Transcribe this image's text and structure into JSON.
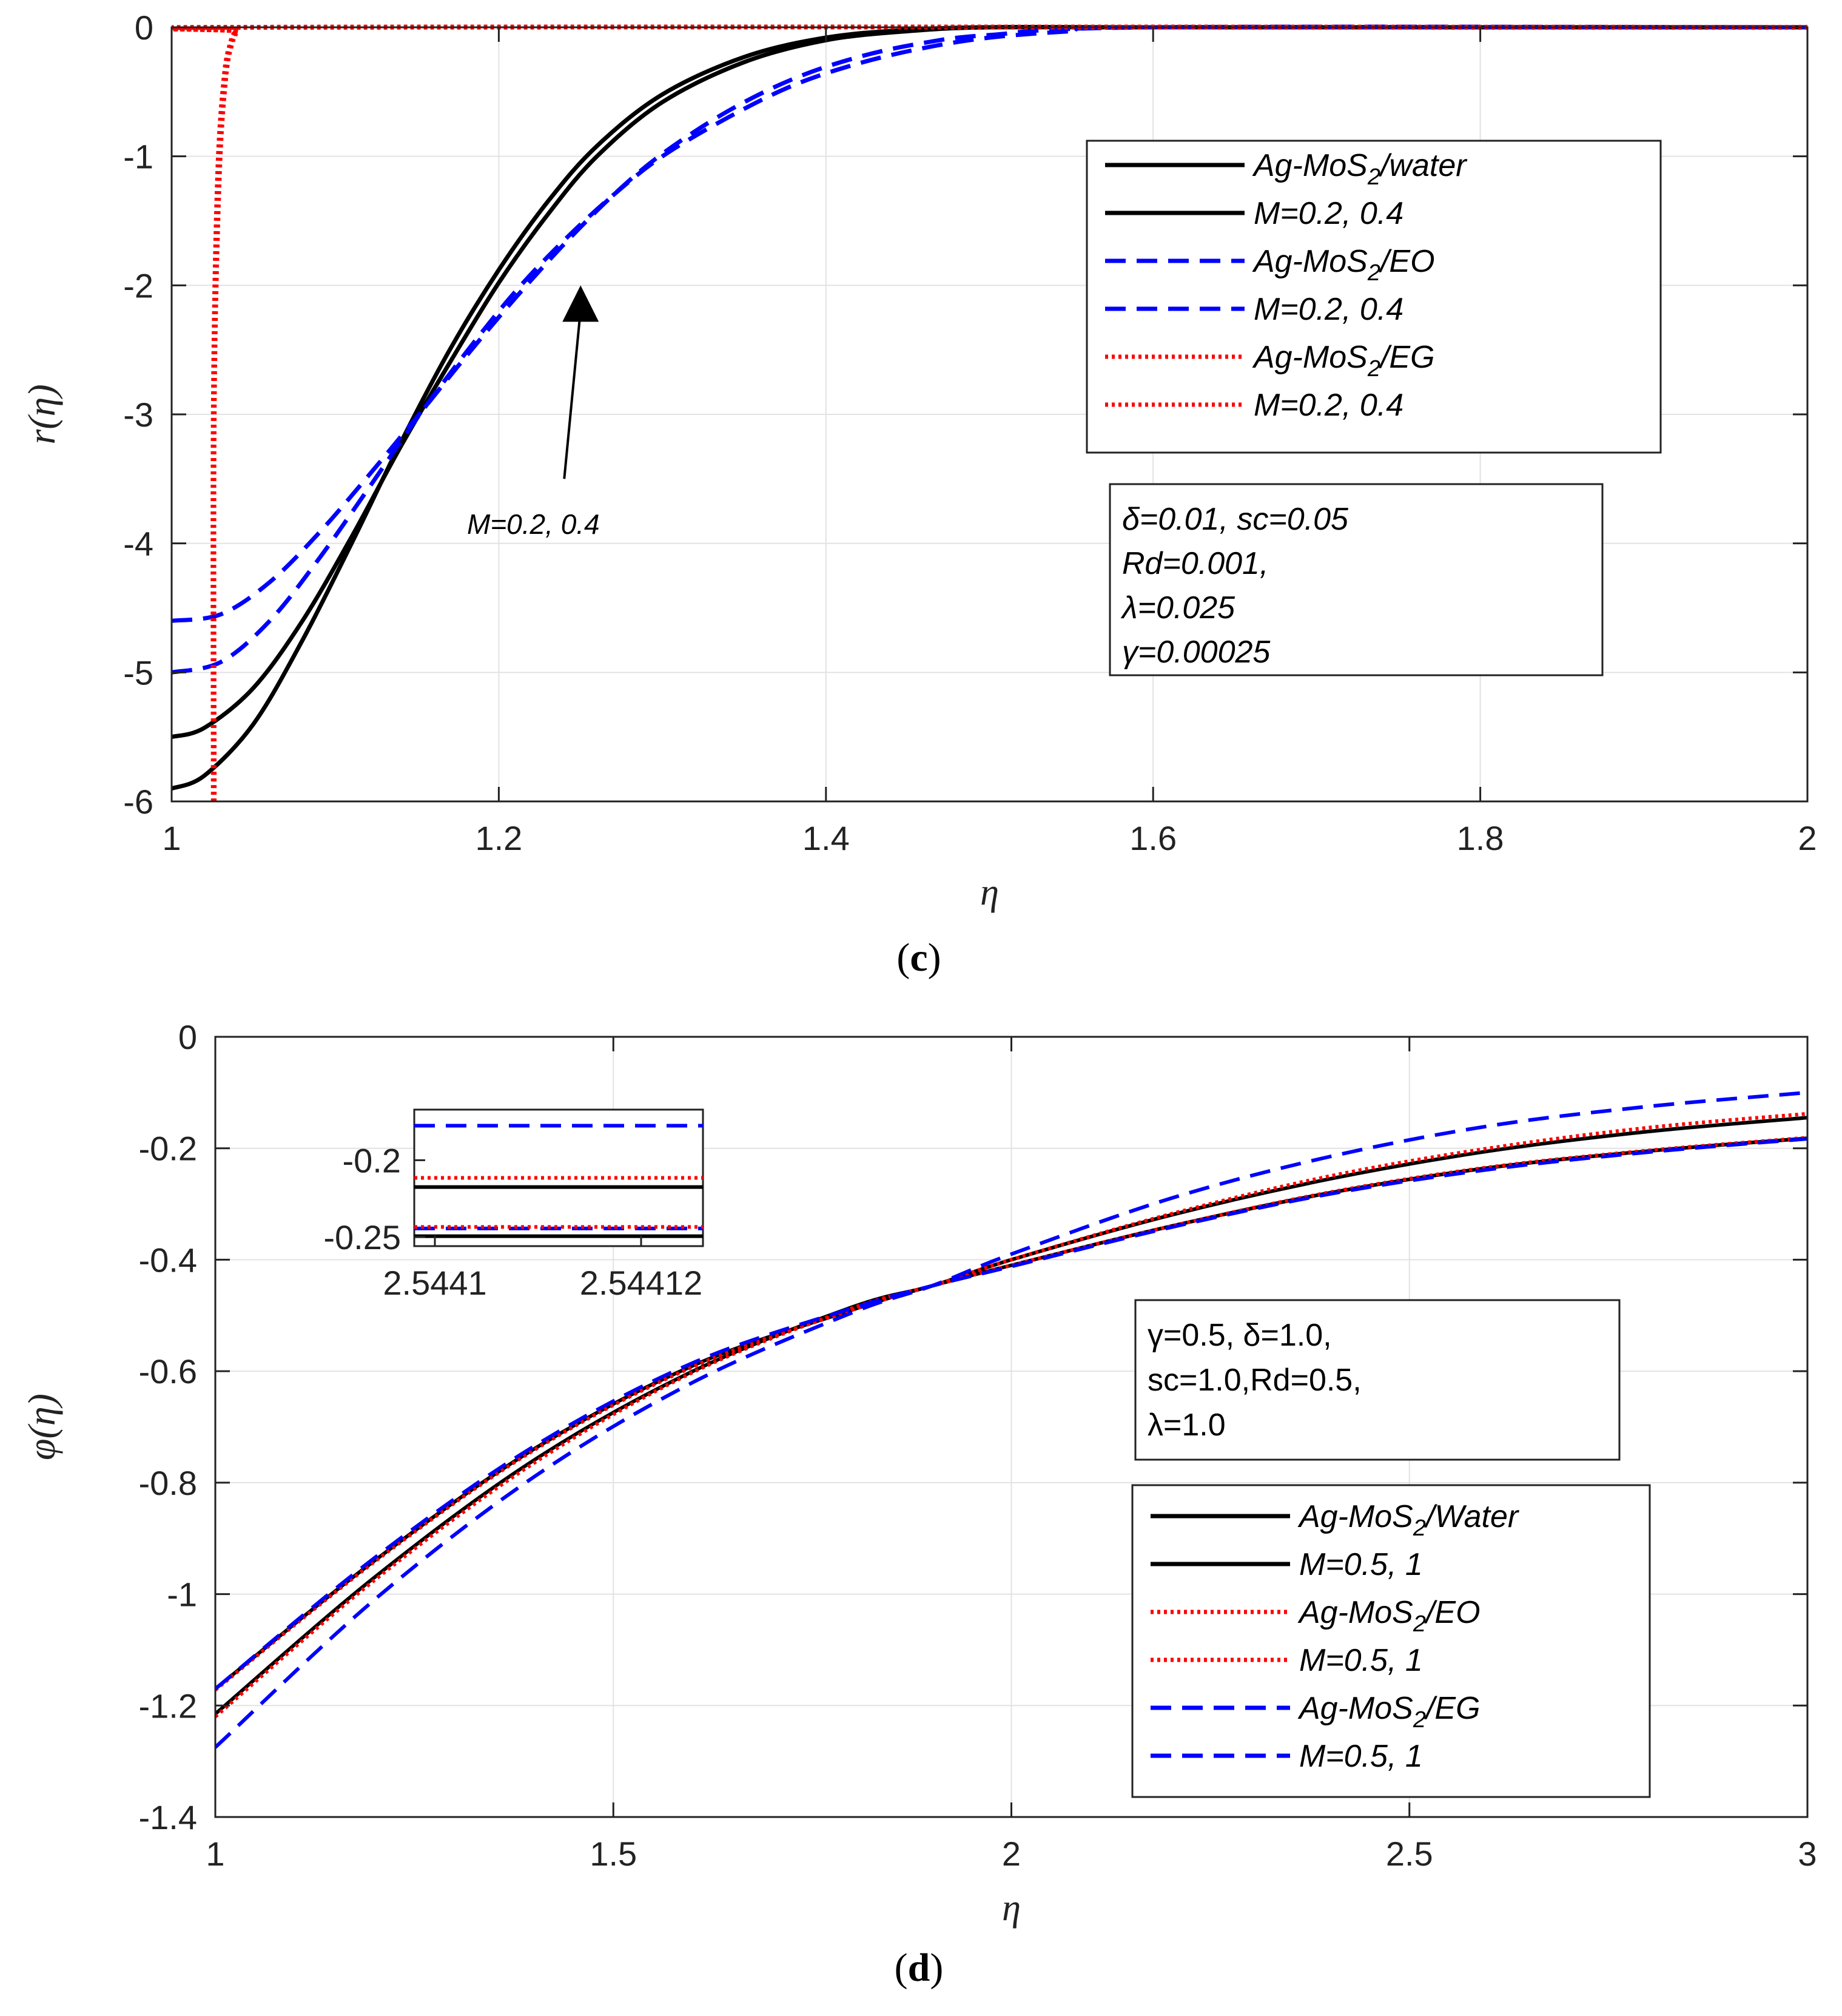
{
  "chart_data": [
    {
      "panel": "c",
      "type": "line",
      "panel_label": "c",
      "xlabel": "η",
      "ylabel": "r(η)",
      "xlim": [
        1,
        2
      ],
      "ylim": [
        -6,
        0
      ],
      "xticks": [
        1,
        1.2,
        1.4,
        1.6,
        1.8,
        2
      ],
      "yticks": [
        0,
        -1,
        -2,
        -3,
        -4,
        -5,
        -6
      ],
      "grid": true,
      "legend_position": "upper-right",
      "legend": [
        {
          "text": "Ag-MoS",
          "sub": "2",
          "tail": "/water",
          "style": "solid",
          "color": "#000000"
        },
        {
          "text": "M=0.2, 0.4",
          "sub": "",
          "tail": "",
          "style": "solid",
          "color": "#000000"
        },
        {
          "text": "Ag-MoS",
          "sub": "2",
          "tail": "/EO",
          "style": "dashed",
          "color": "#0000ff"
        },
        {
          "text": "M=0.2, 0.4",
          "sub": "",
          "tail": "",
          "style": "dashed",
          "color": "#0000ff"
        },
        {
          "text": "Ag-MoS",
          "sub": "2",
          "tail": "/EG",
          "style": "dotted",
          "color": "#ff0000"
        },
        {
          "text": "M=0.2, 0.4",
          "sub": "",
          "tail": "",
          "style": "dotted",
          "color": "#ff0000"
        }
      ],
      "params": [
        "δ=0.01, sc=0.05",
        " Rd=0.001,",
        "λ=0.025",
        "γ=0.00025"
      ],
      "arrow_label": "M=0.2, 0.4",
      "arrow_from": [
        1.24,
        -3.5
      ],
      "arrow_to": [
        1.25,
        -2.0
      ],
      "series": [
        {
          "name": "Ag-MoS2/water, M=0.2",
          "style": "solid",
          "color": "#000000",
          "width": 7,
          "x": [
            1,
            1.02,
            1.05,
            1.08,
            1.11,
            1.14,
            1.17,
            1.2,
            1.23,
            1.26,
            1.3,
            1.35,
            1.4,
            1.45,
            1.5,
            1.6,
            2
          ],
          "y": [
            -5.5,
            -5.43,
            -5.12,
            -4.6,
            -3.95,
            -3.25,
            -2.6,
            -1.98,
            -1.45,
            -1.0,
            -0.58,
            -0.27,
            -0.1,
            -0.03,
            0,
            0,
            0
          ]
        },
        {
          "name": "Ag-MoS2/water, M=0.4",
          "style": "solid",
          "color": "#000000",
          "width": 7,
          "x": [
            1,
            1.02,
            1.05,
            1.08,
            1.11,
            1.14,
            1.17,
            1.2,
            1.23,
            1.26,
            1.3,
            1.35,
            1.4,
            1.45,
            1.5,
            1.6,
            2
          ],
          "y": [
            -5.9,
            -5.8,
            -5.4,
            -4.75,
            -4.0,
            -3.22,
            -2.5,
            -1.88,
            -1.35,
            -0.92,
            -0.52,
            -0.23,
            -0.08,
            -0.02,
            0,
            0,
            0
          ]
        },
        {
          "name": "Ag-MoS2/EO, M=0.2",
          "style": "dashed",
          "color": "#0000ff",
          "width": 7,
          "x": [
            1,
            1.03,
            1.06,
            1.09,
            1.12,
            1.15,
            1.18,
            1.21,
            1.24,
            1.27,
            1.3,
            1.34,
            1.38,
            1.42,
            1.46,
            1.5,
            1.6,
            2
          ],
          "y": [
            -4.6,
            -4.55,
            -4.3,
            -3.92,
            -3.48,
            -3.02,
            -2.55,
            -2.1,
            -1.68,
            -1.3,
            -0.98,
            -0.65,
            -0.4,
            -0.23,
            -0.12,
            -0.06,
            0,
            0
          ]
        },
        {
          "name": "Ag-MoS2/EO, M=0.4",
          "style": "dashed",
          "color": "#0000ff",
          "width": 7,
          "x": [
            1,
            1.03,
            1.06,
            1.09,
            1.12,
            1.15,
            1.18,
            1.21,
            1.24,
            1.27,
            1.3,
            1.34,
            1.38,
            1.42,
            1.46,
            1.5,
            1.55,
            1.6,
            2
          ],
          "y": [
            -5.0,
            -4.92,
            -4.6,
            -4.12,
            -3.58,
            -3.03,
            -2.52,
            -2.05,
            -1.65,
            -1.3,
            -1.0,
            -0.7,
            -0.45,
            -0.28,
            -0.16,
            -0.08,
            -0.03,
            0,
            0
          ]
        },
        {
          "name": "Ag-MoS2/EG, M=0.2",
          "style": "dotted",
          "color": "#ff0000",
          "width": 8,
          "x": [
            1.0255,
            1.0255,
            1.028,
            1.032,
            1.036,
            1.04,
            1.05,
            2
          ],
          "y": [
            -6.0,
            -3.0,
            -1.2,
            -0.4,
            -0.12,
            -0.03,
            0,
            0
          ]
        },
        {
          "name": "Ag-MoS2/EG, M=0.4",
          "style": "dotted",
          "color": "#ff0000",
          "width": 8,
          "x": [
            1.026,
            1.026,
            1.029,
            1.033,
            1.037,
            1.041,
            1.05,
            2
          ],
          "y": [
            -6.0,
            -3.0,
            -1.2,
            -0.4,
            -0.12,
            -0.03,
            0,
            0
          ]
        }
      ]
    },
    {
      "panel": "d",
      "type": "line",
      "panel_label": "d",
      "xlabel": "η",
      "ylabel": "φ(η)",
      "xlim": [
        1,
        3
      ],
      "ylim": [
        -1.4,
        0
      ],
      "xticks": [
        1,
        1.5,
        2,
        2.5,
        3
      ],
      "yticks": [
        0,
        -0.2,
        -0.4,
        -0.6,
        -0.8,
        -1,
        -1.2,
        -1.4
      ],
      "ytick_labels": [
        "0",
        "-0.2",
        "-0.4",
        "-0.6",
        "-0.8",
        "-1",
        "-1.2",
        "-1.4"
      ],
      "grid": true,
      "legend_position": "lower-right",
      "legend": [
        {
          "text": "Ag-MoS",
          "sub": "2",
          "tail": "/Water",
          "style": "solid",
          "color": "#000000"
        },
        {
          "text": "M=0.5, 1",
          "sub": "",
          "tail": "",
          "style": "solid",
          "color": "#000000"
        },
        {
          "text": "Ag-MoS",
          "sub": "2",
          "tail": "/EO",
          "style": "dotted",
          "color": "#ff0000"
        },
        {
          "text": "M=0.5, 1",
          "sub": "",
          "tail": "",
          "style": "dotted",
          "color": "#ff0000"
        },
        {
          "text": "Ag-MoS",
          "sub": "2",
          "tail": "/EG",
          "style": "dashed",
          "color": "#0000ff"
        },
        {
          "text": "M=0.5, 1",
          "sub": "",
          "tail": "",
          "style": "dashed",
          "color": "#0000ff"
        }
      ],
      "params": [
        "γ=0.5, δ=1.0,",
        "sc=1.0,Rd=0.5,",
        "λ=1.0"
      ],
      "inset": {
        "xlim": [
          2.544098,
          2.544126
        ],
        "ylim": [
          -0.256,
          -0.167
        ],
        "xticks": [
          2.5441,
          2.54412
        ],
        "xtick_labels": [
          "2.5441",
          "2.54412"
        ],
        "yticks": [
          -0.2,
          -0.25
        ],
        "ytick_labels": [
          "-0.2",
          "-0.25"
        ],
        "lines": [
          {
            "y": -0.1775,
            "style": "dashed",
            "color": "#0000ff"
          },
          {
            "y": -0.2115,
            "style": "dotted",
            "color": "#ff0000"
          },
          {
            "y": -0.2175,
            "style": "solid",
            "color": "#000000"
          },
          {
            "y": -0.2445,
            "style": "dashed",
            "color": "#0000ff"
          },
          {
            "y": -0.2435,
            "style": "dotted",
            "color": "#ff0000"
          },
          {
            "y": -0.2495,
            "style": "solid",
            "color": "#000000"
          }
        ]
      },
      "series": [
        {
          "name": "Ag-MoS2/Water, M=0.5",
          "style": "solid",
          "color": "#000000",
          "width": 6,
          "x": [
            1,
            1.2,
            1.4,
            1.6,
            1.8,
            1.9,
            2.0,
            2.2,
            2.4,
            2.6,
            2.8,
            3.0
          ],
          "y": [
            -1.215,
            -0.97,
            -0.76,
            -0.6,
            -0.485,
            -0.447,
            -0.4,
            -0.32,
            -0.255,
            -0.205,
            -0.17,
            -0.145
          ]
        },
        {
          "name": "Ag-MoS2/Water, M=1",
          "style": "solid",
          "color": "#000000",
          "width": 6,
          "x": [
            1,
            1.2,
            1.4,
            1.6,
            1.8,
            1.9,
            2.0,
            2.2,
            2.4,
            2.6,
            2.8,
            3.0
          ],
          "y": [
            -1.17,
            -0.94,
            -0.74,
            -0.59,
            -0.49,
            -0.447,
            -0.41,
            -0.34,
            -0.28,
            -0.235,
            -0.205,
            -0.182
          ]
        },
        {
          "name": "Ag-MoS2/EO, M=0.5",
          "style": "dotted",
          "color": "#ff0000",
          "width": 6,
          "x": [
            1,
            1.2,
            1.4,
            1.6,
            1.8,
            1.9,
            2.0,
            2.2,
            2.4,
            2.6,
            2.8,
            3.0
          ],
          "y": [
            -1.22,
            -0.975,
            -0.765,
            -0.602,
            -0.487,
            -0.447,
            -0.4,
            -0.318,
            -0.25,
            -0.2,
            -0.163,
            -0.138
          ]
        },
        {
          "name": "Ag-MoS2/EO, M=1",
          "style": "dotted",
          "color": "#ff0000",
          "width": 6,
          "x": [
            1,
            1.2,
            1.4,
            1.6,
            1.8,
            1.9,
            2.0,
            2.2,
            2.4,
            2.6,
            2.8,
            3.0
          ],
          "y": [
            -1.172,
            -0.942,
            -0.742,
            -0.592,
            -0.49,
            -0.447,
            -0.41,
            -0.34,
            -0.279,
            -0.234,
            -0.204,
            -0.181
          ]
        },
        {
          "name": "Ag-MoS2/EG, M=0.5",
          "style": "dashed",
          "color": "#0000ff",
          "width": 6,
          "x": [
            1,
            1.2,
            1.4,
            1.6,
            1.8,
            1.9,
            2.0,
            2.2,
            2.4,
            2.6,
            2.8,
            3.0
          ],
          "y": [
            -1.275,
            -1.01,
            -0.79,
            -0.62,
            -0.495,
            -0.447,
            -0.39,
            -0.29,
            -0.215,
            -0.16,
            -0.125,
            -0.1
          ]
        },
        {
          "name": "Ag-MoS2/EG, M=1",
          "style": "dashed",
          "color": "#0000ff",
          "width": 6,
          "x": [
            1,
            1.2,
            1.4,
            1.6,
            1.8,
            1.9,
            2.0,
            2.2,
            2.4,
            2.6,
            2.8,
            3.0
          ],
          "y": [
            -1.17,
            -0.935,
            -0.735,
            -0.585,
            -0.487,
            -0.447,
            -0.412,
            -0.342,
            -0.282,
            -0.238,
            -0.207,
            -0.183
          ]
        }
      ]
    }
  ]
}
